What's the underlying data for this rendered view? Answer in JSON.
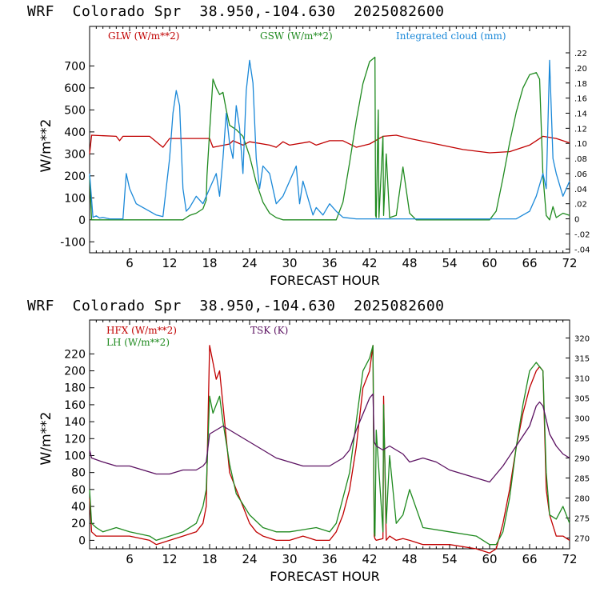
{
  "panels": [
    {
      "title": "WRF  Colorado Spr  38.950,-104.630  2025082600",
      "ylabel": "W/m**2",
      "xlabel": "FORECAST HOUR",
      "legend": [
        {
          "label": "GLW (W/m**2)",
          "color": "#c00000"
        },
        {
          "label": "GSW (W/m**2)",
          "color": "#1f8a1f"
        },
        {
          "label": "Integrated cloud (mm)",
          "color": "#1a88d8"
        }
      ]
    },
    {
      "title": "WRF  Colorado Spr  38.950,-104.630  2025082600",
      "ylabel": "W/m**2",
      "xlabel": "FORECAST HOUR",
      "legend": [
        {
          "label": "HFX (W/m**2)",
          "color": "#c00000"
        },
        {
          "label": "LH  (W/m**2)",
          "color": "#1f8a1f"
        },
        {
          "label": "TSK (K)",
          "color": "#5a1060"
        }
      ]
    }
  ],
  "chart_data": [
    {
      "type": "line",
      "title": "WRF  Colorado Spr  38.950,-104.630  2025082600",
      "xlabel": "FORECAST HOUR",
      "ylabel": "W/m**2",
      "xlim": [
        0,
        72
      ],
      "ylim": [
        -150,
        880
      ],
      "x_ticks": [
        6,
        12,
        18,
        24,
        30,
        36,
        42,
        48,
        54,
        60,
        66,
        72
      ],
      "y_ticks": [
        -100,
        0,
        100,
        200,
        300,
        400,
        500,
        600,
        700
      ],
      "y2lim": [
        -0.045,
        0.255
      ],
      "y2_ticks": [
        "-.04",
        "-.02",
        "0",
        ".02",
        ".04",
        ".06",
        ".08",
        ".10",
        ".12",
        ".14",
        ".16",
        ".18",
        ".20",
        ".22"
      ],
      "series": [
        {
          "name": "GLW (W/m**2)",
          "axis": "left",
          "color": "#c00000",
          "x": [
            0,
            0.3,
            4,
            4.5,
            5,
            9,
            11,
            12,
            18,
            18.5,
            21,
            21.5,
            23,
            24,
            27,
            28,
            29,
            30,
            33,
            34,
            36,
            38,
            40,
            42,
            44,
            46,
            48,
            52,
            56,
            60,
            63,
            66,
            68,
            70,
            72
          ],
          "y": [
            300,
            385,
            380,
            360,
            380,
            380,
            330,
            370,
            370,
            330,
            345,
            360,
            340,
            355,
            340,
            330,
            355,
            340,
            355,
            340,
            360,
            360,
            330,
            345,
            380,
            385,
            370,
            345,
            320,
            305,
            310,
            340,
            380,
            370,
            350
          ]
        },
        {
          "name": "GSW (W/m**2)",
          "axis": "left",
          "color": "#1f8a1f",
          "x": [
            0,
            0.3,
            1,
            14,
            14.5,
            15,
            16,
            17,
            17.5,
            17.6,
            18,
            18.5,
            19,
            19.5,
            20,
            20.5,
            21,
            22,
            23,
            24,
            25,
            26,
            27,
            28,
            29,
            30,
            37,
            38,
            39,
            40,
            41,
            42,
            42.8,
            42.9,
            43,
            43.3,
            43.4,
            44,
            44.1,
            44.5,
            45,
            46,
            47,
            48,
            49,
            60,
            61,
            62,
            63,
            64,
            65,
            66,
            67,
            67.5,
            68,
            68.5,
            69,
            69.5,
            70,
            71,
            72
          ],
          "y": [
            200,
            0,
            0,
            0,
            10,
            20,
            30,
            50,
            90,
            200,
            400,
            640,
            600,
            570,
            580,
            500,
            430,
            410,
            380,
            290,
            170,
            80,
            30,
            10,
            0,
            0,
            0,
            80,
            260,
            450,
            620,
            720,
            740,
            20,
            10,
            500,
            10,
            380,
            20,
            300,
            10,
            20,
            240,
            30,
            0,
            0,
            40,
            190,
            350,
            490,
            600,
            660,
            670,
            640,
            200,
            20,
            0,
            60,
            10,
            30,
            20
          ]
        },
        {
          "name": "Integrated cloud (mm)",
          "axis": "right",
          "color": "#1a88d8",
          "x": [
            0,
            0.5,
            1,
            1.5,
            2,
            3,
            4,
            5,
            5.5,
            6,
            7,
            8,
            9,
            10,
            11,
            12,
            12.5,
            13,
            13.5,
            14,
            14.5,
            15,
            16,
            17,
            18,
            19,
            19.5,
            20,
            20.5,
            21,
            21.5,
            22,
            22.5,
            23,
            23.5,
            24,
            24.5,
            25,
            25.5,
            26,
            27,
            28,
            29,
            30,
            31,
            31.5,
            32,
            33,
            33.5,
            34,
            35,
            36,
            37,
            38,
            40,
            58,
            60,
            62,
            64,
            66,
            67,
            68,
            68.5,
            69,
            69.5,
            70,
            71,
            72
          ],
          "y": [
            0.06,
            0.002,
            0.004,
            0.001,
            0.002,
            0.0,
            0.0,
            0.0,
            0.06,
            0.04,
            0.02,
            0.015,
            0.01,
            0.005,
            0.003,
            0.08,
            0.14,
            0.17,
            0.15,
            0.04,
            0.01,
            0.015,
            0.03,
            0.02,
            0.04,
            0.06,
            0.03,
            0.08,
            0.14,
            0.1,
            0.08,
            0.15,
            0.12,
            0.06,
            0.17,
            0.21,
            0.18,
            0.08,
            0.04,
            0.07,
            0.06,
            0.02,
            0.03,
            0.05,
            0.07,
            0.02,
            0.05,
            0.02,
            0.005,
            0.015,
            0.005,
            0.02,
            0.01,
            0.002,
            0.0,
            0.0,
            0.0,
            0.0,
            0.0,
            0.01,
            0.03,
            0.06,
            0.04,
            0.21,
            0.08,
            0.06,
            0.03,
            0.05
          ]
        }
      ]
    },
    {
      "type": "line",
      "title": "WRF  Colorado Spr  38.950,-104.630  2025082600",
      "xlabel": "FORECAST HOUR",
      "ylabel": "W/m**2",
      "xlim": [
        0,
        72
      ],
      "ylim": [
        -10,
        260
      ],
      "x_ticks": [
        6,
        12,
        18,
        24,
        30,
        36,
        42,
        48,
        54,
        60,
        66,
        72
      ],
      "y_ticks": [
        0,
        20,
        40,
        60,
        80,
        100,
        120,
        140,
        160,
        180,
        200,
        220
      ],
      "y2lim": [
        267.3,
        324.5
      ],
      "y2_ticks": [
        270,
        275,
        280,
        285,
        290,
        295,
        300,
        305,
        310,
        315,
        320
      ],
      "series": [
        {
          "name": "HFX (W/m**2)",
          "axis": "left",
          "color": "#c00000",
          "x": [
            0,
            0.3,
            1,
            3,
            6,
            9,
            10,
            12,
            14,
            16,
            17,
            17.5,
            18,
            18.5,
            19,
            19.5,
            20,
            21,
            22,
            23,
            24,
            25,
            26,
            28,
            30,
            32,
            34,
            36,
            37,
            38,
            39,
            40,
            41,
            42,
            42.5,
            42.7,
            42.8,
            43,
            44,
            44.1,
            44.5,
            45,
            46,
            47,
            48,
            50,
            54,
            58,
            60,
            61,
            62,
            63,
            64,
            65,
            66,
            67,
            67.5,
            68,
            68.5,
            69,
            70,
            71,
            72
          ],
          "y": [
            50,
            10,
            5,
            5,
            5,
            0,
            -5,
            0,
            5,
            10,
            20,
            40,
            230,
            210,
            190,
            200,
            160,
            80,
            60,
            40,
            20,
            10,
            5,
            0,
            0,
            5,
            0,
            0,
            10,
            30,
            60,
            110,
            180,
            200,
            230,
            5,
            2,
            0,
            2,
            170,
            0,
            5,
            0,
            2,
            0,
            -5,
            -5,
            -10,
            -15,
            -10,
            20,
            60,
            110,
            150,
            180,
            200,
            205,
            200,
            60,
            30,
            5,
            5,
            0
          ]
        },
        {
          "name": "LH  (W/m**2)",
          "axis": "left",
          "color": "#1f8a1f",
          "x": [
            0,
            0.3,
            1,
            2,
            4,
            6,
            9,
            10,
            12,
            14,
            16,
            17,
            17.5,
            18,
            18.5,
            19,
            19.5,
            20,
            21,
            22,
            24,
            26,
            28,
            30,
            34,
            36,
            37,
            38,
            39,
            40,
            41,
            42,
            42.5,
            42.7,
            42.8,
            43,
            44,
            44.1,
            44.5,
            45,
            46,
            47,
            48,
            50,
            54,
            58,
            60,
            61,
            62,
            63,
            64,
            65,
            66,
            67,
            67.5,
            68,
            68.5,
            69,
            70,
            71,
            72
          ],
          "y": [
            60,
            20,
            15,
            10,
            15,
            10,
            5,
            0,
            5,
            10,
            20,
            40,
            60,
            170,
            150,
            160,
            170,
            140,
            90,
            55,
            30,
            15,
            10,
            10,
            15,
            10,
            20,
            50,
            80,
            140,
            200,
            215,
            230,
            10,
            5,
            130,
            10,
            160,
            20,
            100,
            20,
            30,
            60,
            15,
            10,
            5,
            -5,
            -5,
            10,
            50,
            110,
            160,
            200,
            210,
            205,
            200,
            80,
            30,
            25,
            40,
            20
          ]
        },
        {
          "name": "TSK (K)",
          "axis": "right",
          "color": "#5a1060",
          "x": [
            0,
            0.3,
            2,
            4,
            6,
            8,
            10,
            12,
            14,
            16,
            17,
            17.5,
            18,
            19,
            20,
            21,
            22,
            24,
            26,
            28,
            30,
            32,
            34,
            36,
            37,
            38,
            39,
            40,
            41,
            42,
            42.5,
            42.7,
            43,
            44,
            45,
            46,
            47,
            48,
            50,
            52,
            54,
            56,
            58,
            60,
            62,
            64,
            66,
            67,
            67.5,
            68,
            69,
            70,
            71,
            72
          ],
          "y": [
            292,
            290,
            289,
            288,
            288,
            287,
            286,
            286,
            287,
            287,
            288,
            289,
            296,
            297,
            298,
            297,
            296,
            294,
            292,
            290,
            289,
            288,
            288,
            288,
            289,
            290,
            292,
            297,
            301,
            305,
            306,
            294,
            293,
            292,
            293,
            292,
            291,
            289,
            290,
            289,
            287,
            286,
            285,
            284,
            288,
            293,
            298,
            303,
            304,
            303,
            296,
            293,
            291,
            290
          ]
        }
      ]
    }
  ]
}
